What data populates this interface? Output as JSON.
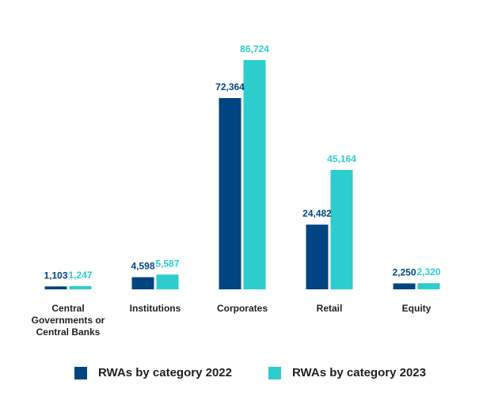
{
  "chart_data": {
    "type": "bar",
    "categories": [
      [
        "Central",
        "Governments or",
        "Central Banks"
      ],
      [
        "Institutions"
      ],
      [
        "Corporates"
      ],
      [
        "Retail"
      ],
      [
        "Equity"
      ]
    ],
    "series": [
      {
        "name": "RWAs by category 2022",
        "color": "#004481",
        "values": [
          1103,
          4598,
          72364,
          24482,
          2250
        ],
        "labels": [
          "1,103",
          "4,598",
          "72,364",
          "24,482",
          "2,250"
        ]
      },
      {
        "name": "RWAs by category 2023",
        "color": "#2dcccd",
        "values": [
          1247,
          5587,
          86724,
          45164,
          2320
        ],
        "labels": [
          "1,247",
          "5,587",
          "86,724",
          "45,164",
          "2,320"
        ]
      }
    ],
    "title": "",
    "xlabel": "",
    "ylabel": "",
    "ylim": [
      0,
      86724
    ],
    "grid": false,
    "legend": "bottom"
  }
}
